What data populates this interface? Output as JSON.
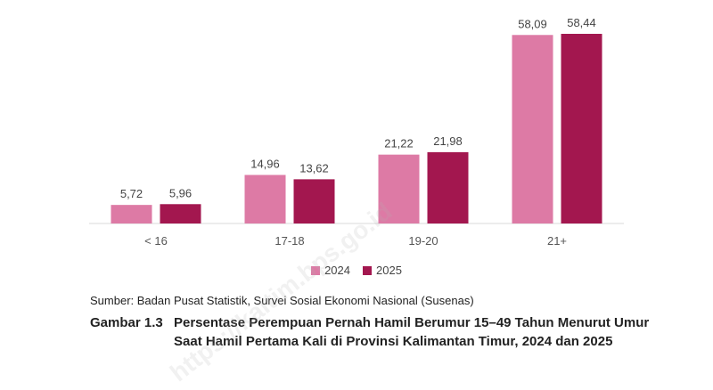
{
  "chart_data": {
    "type": "bar",
    "categories": [
      "< 16",
      "17-18",
      "19-20",
      "21+"
    ],
    "series": [
      {
        "name": "2024",
        "values": [
          5.72,
          14.96,
          21.22,
          58.09
        ],
        "labels": [
          "5,72",
          "14,96",
          "21,22",
          "58,09"
        ],
        "color": "#dd7aa5"
      },
      {
        "name": "2025",
        "values": [
          5.96,
          13.62,
          21.98,
          58.44
        ],
        "labels": [
          "5,96",
          "13,62",
          "21,98",
          "58,44"
        ],
        "color": "#a3174f"
      }
    ],
    "ylim": [
      0,
      60
    ],
    "grid": false,
    "legend_position": "bottom"
  },
  "source": "Sumber: Badan Pusat Statistik, Survei Sosial Ekonomi Nasional (Susenas)",
  "caption": {
    "number": "Gambar 1.3",
    "title": "Persentase Perempuan Pernah Hamil Berumur 15–49 Tahun Menurut Umur Saat Hamil Pertama Kali di Provinsi Kalimantan Timur, 2024 dan 2025"
  },
  "watermark": "https://kaltim.bps.go.id"
}
